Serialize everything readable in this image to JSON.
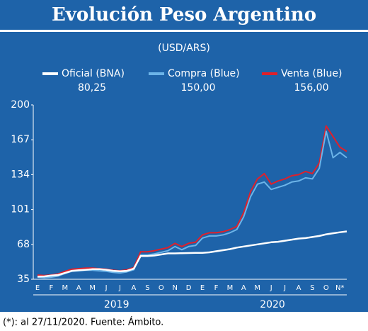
{
  "chart_data": {
    "type": "line",
    "title": "Evolución Peso Argentino",
    "subtitle": "(USD/ARS)",
    "footnote": "(*): al 27/11/2020. Fuente: Ámbito.",
    "categories": [
      "E",
      null,
      "F",
      null,
      "M",
      null,
      "A",
      null,
      "M",
      null,
      "J",
      null,
      "J",
      null,
      "A",
      null,
      "S",
      null,
      "O",
      null,
      "N",
      null,
      "D",
      null,
      "E",
      null,
      "F",
      null,
      "M",
      null,
      "A",
      null,
      "M",
      null,
      "J",
      null,
      "J",
      null,
      "A",
      null,
      "S",
      null,
      "O",
      null,
      "N*",
      null
    ],
    "year_labels": [
      "2019",
      "2020"
    ],
    "series": [
      {
        "name": "Oficial (BNA)",
        "color": "#ffffff",
        "latest": {
          "value": 80.25,
          "label": "80,25"
        },
        "values": [
          37.5,
          37.7,
          38.5,
          39,
          41,
          43,
          43.5,
          44,
          44.5,
          44.5,
          44,
          43,
          42.5,
          43,
          45,
          57,
          57,
          57.5,
          58.5,
          59.5,
          59.5,
          59.7,
          59.8,
          60,
          60,
          60.5,
          61.5,
          62.5,
          63.5,
          65,
          66,
          67,
          68,
          69,
          70,
          70.5,
          71.5,
          72.5,
          73.5,
          74,
          75,
          76,
          77.5,
          78.5,
          79.5,
          80.25
        ]
      },
      {
        "name": "Compra (Blue)",
        "color": "#6cb4e8",
        "latest": {
          "value": 150,
          "label": "150,00"
        },
        "values": [
          37,
          36.5,
          37,
          38,
          40.5,
          42.5,
          43,
          43.5,
          43.5,
          43,
          42.5,
          41.5,
          41,
          42,
          44,
          58,
          58,
          59,
          60.5,
          62,
          66,
          63,
          66,
          67,
          74,
          76,
          76,
          77,
          79,
          82,
          94,
          113,
          125,
          127,
          120,
          122,
          124,
          127,
          128,
          131,
          130,
          140,
          175,
          150,
          155,
          150
        ]
      },
      {
        "name": "Venta (Blue)",
        "color": "#e0202a",
        "latest": {
          "value": 156,
          "label": "156,00"
        },
        "values": [
          39,
          38.5,
          39,
          40,
          42.5,
          44.5,
          45,
          45.5,
          45.5,
          45,
          44.5,
          43.5,
          43,
          44,
          46,
          61,
          61,
          62,
          63.5,
          65,
          69,
          66,
          69,
          70,
          77,
          79,
          79,
          80,
          82,
          85,
          98,
          118,
          130,
          135,
          125,
          128,
          130,
          133,
          134,
          137,
          135,
          145,
          180,
          170,
          160,
          156
        ]
      }
    ],
    "ylim": [
      35,
      200
    ],
    "yticks": [
      35,
      68,
      101,
      134,
      167,
      200
    ],
    "grid": false
  }
}
